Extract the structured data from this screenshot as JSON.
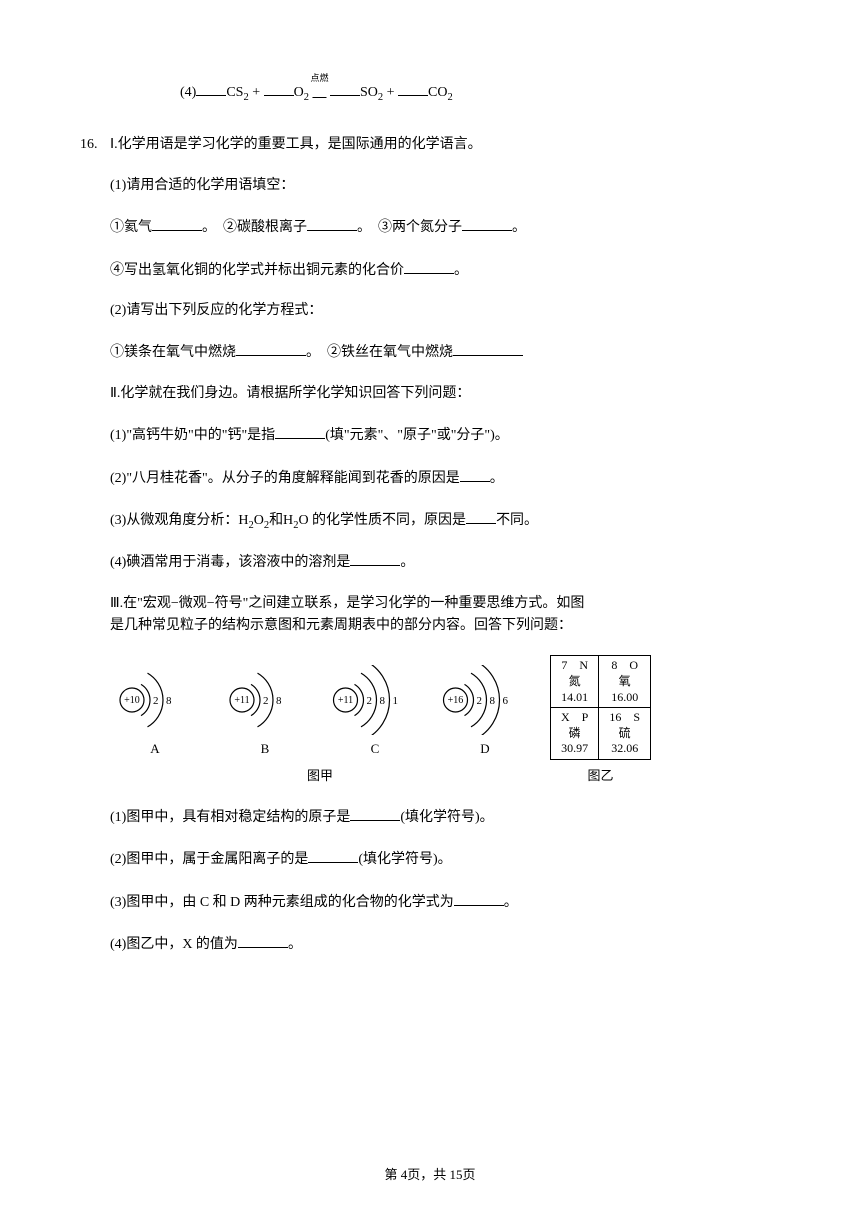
{
  "eq4": {
    "prefix": "(4)",
    "r1": "CS",
    "r1_sub": "2",
    "plus": " + ",
    "r2": "O",
    "r2_sub": "2",
    "arrow_anno": "点燃",
    "p1": "SO",
    "p1_sub": "2",
    "p2": "CO",
    "p2_sub": "2"
  },
  "q16": {
    "num": "16.",
    "intro": "Ⅰ.化学用语是学习化学的重要工具，是国际通用的化学语言。",
    "p1": {
      "label": "(1)请用合适的化学用语填空：",
      "i1a": "①氦气",
      "i1b": "。　②碳酸根离子",
      "i1c": "。　③两个氮分子",
      "i1d": "。",
      "i4": "④写出氢氧化铜的化学式并标出铜元素的化合价",
      "i4_end": "。"
    },
    "p2": {
      "label": "(2)请写出下列反应的化学方程式：",
      "i1": "①镁条在氧气中燃烧",
      "i2": "。　②铁丝在氧气中燃烧"
    },
    "sect2_intro": "Ⅱ.化学就在我们身边。请根据所学化学知识回答下列问题：",
    "s2_1a": "(1)\"高钙牛奶\"中的\"钙\"是指",
    "s2_1b": "(填\"元素\"、\"原子\"或\"分子\")。",
    "s2_2a": "(2)\"八月桂花香\"。从分子的角度解释能闻到花香的原因是",
    "s2_2b": "。",
    "s2_3a": "(3)从微观角度分析：H",
    "s2_3_sub1": "2",
    "s2_3b": "O",
    "s2_3_sub2": "2",
    "s2_3c": "和H",
    "s2_3_sub3": "2",
    "s2_3d": "O 的化学性质不同，原因是",
    "s2_3e": "不同。",
    "s2_4a": "(4)碘酒常用于消毒，该溶液中的溶剂是",
    "s2_4b": "。",
    "sect3_intro1": "Ⅲ.在\"宏观−微观−符号\"之间建立联系，是学习化学的一种重要思维方式。如图",
    "sect3_intro2": "是几种常见粒子的结构示意图和元素周期表中的部分内容。回答下列问题：",
    "atoms": {
      "A": {
        "core": "+10",
        "shells": [
          "2",
          "8"
        ],
        "label": "A"
      },
      "B": {
        "core": "+11",
        "shells": [
          "2",
          "8"
        ],
        "label": "B"
      },
      "C": {
        "core": "+11",
        "shells": [
          "2",
          "8",
          "1"
        ],
        "label": "C"
      },
      "D": {
        "core": "+16",
        "shells": [
          "2",
          "8",
          "6"
        ],
        "label": "D"
      }
    },
    "caption_left": "图甲",
    "caption_right": "图乙",
    "ptable": {
      "r1c1_top": "7　N",
      "r1c1_mid": "氮",
      "r1c1_bot": "14.01",
      "r1c2_top": "8　O",
      "r1c2_mid": "氧",
      "r1c2_bot": "16.00",
      "r2c1_top": "X　P",
      "r2c1_mid": "磷",
      "r2c1_bot": "30.97",
      "r2c2_top": "16　S",
      "r2c2_mid": "硫",
      "r2c2_bot": "32.06"
    },
    "s3_1a": "(1)图甲中，具有相对稳定结构的原子是",
    "s3_1b": "(填化学符号)。",
    "s3_2a": "(2)图甲中，属于金属阳离子的是",
    "s3_2b": "(填化学符号)。",
    "s3_3a": "(3)图甲中，由 C 和 D 两种元素组成的化合物的化学式为",
    "s3_3b": "。",
    "s3_4a": "(4)图乙中，X 的值为",
    "s3_4b": "。"
  },
  "footer": "第 4页，共 15页",
  "svg_style": {
    "stroke": "#000000",
    "stroke_width": 1.2,
    "core_radius": 12,
    "font_size": 11,
    "arc_gap": 13
  }
}
